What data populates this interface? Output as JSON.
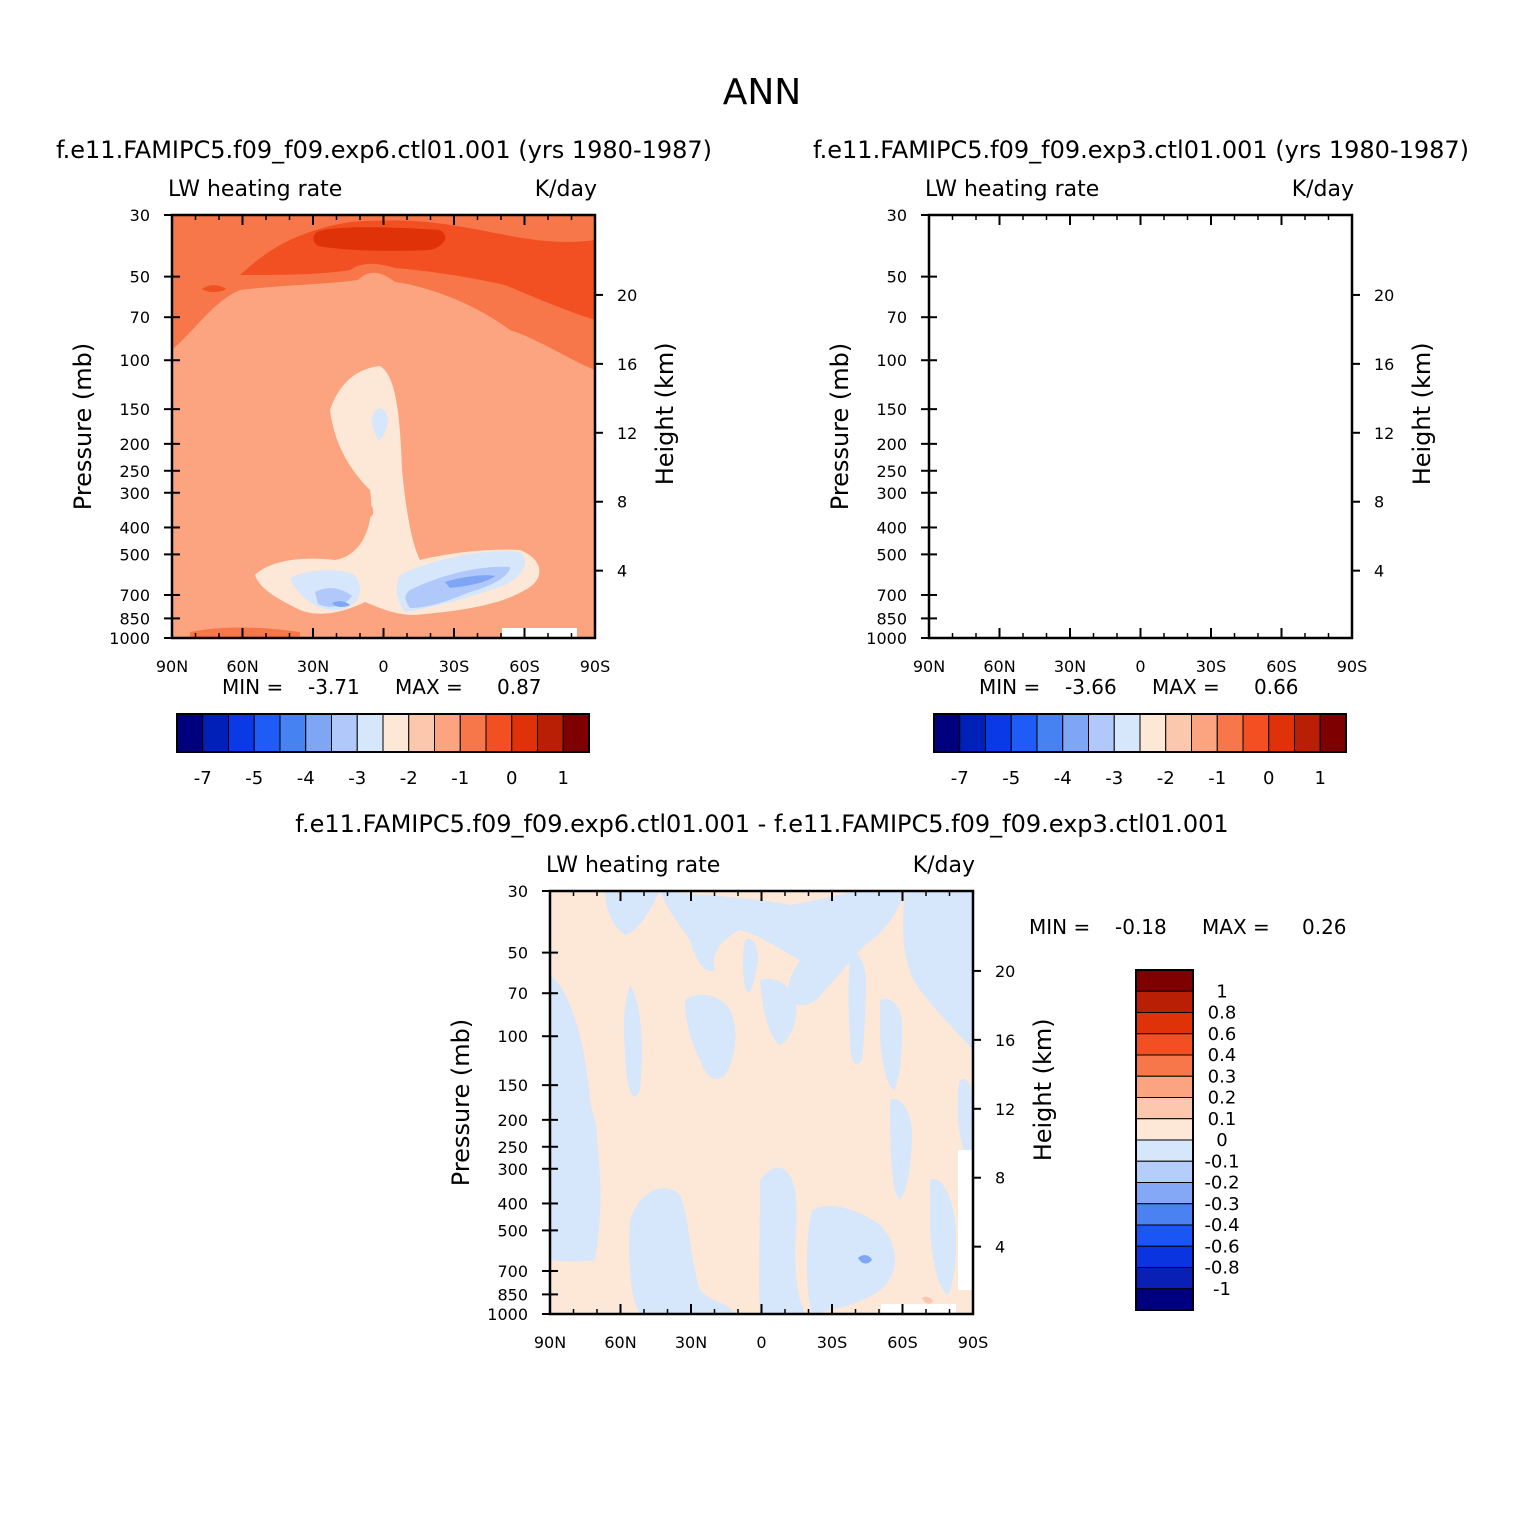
{
  "page_title": "ANN",
  "chart_data": [
    {
      "type": "heatmap",
      "title": "f.e11.FAMIPC5.f09_f09.exp6.ctl01.001 (yrs 1980-1987)",
      "left_label": "LW heating rate",
      "right_label": "K/day",
      "ylabel": "Pressure (mb)",
      "ylabel_right": "Height (km)",
      "x_ticks": [
        "90N",
        "60N",
        "30N",
        "0",
        "30S",
        "60S",
        "90S"
      ],
      "y_ticks": [
        "30",
        "50",
        "70",
        "100",
        "150",
        "200",
        "250",
        "300",
        "400",
        "500",
        "700",
        "850",
        "1000"
      ],
      "height_ticks": [
        "20",
        "16",
        "12",
        "8",
        "4"
      ],
      "min_label": "MIN =",
      "min_value": "-3.71",
      "max_label": "MAX =",
      "max_value": "0.87",
      "colorbar_labels": [
        "-7",
        "-5",
        "-4",
        "-3",
        "-2",
        "-1",
        "0",
        "1"
      ]
    },
    {
      "type": "heatmap",
      "title": "f.e11.FAMIPC5.f09_f09.exp3.ctl01.001 (yrs 1980-1987)",
      "left_label": "LW heating rate",
      "right_label": "K/day",
      "ylabel": "Pressure (mb)",
      "ylabel_right": "Height (km)",
      "x_ticks": [
        "90N",
        "60N",
        "30N",
        "0",
        "30S",
        "60S",
        "90S"
      ],
      "y_ticks": [
        "30",
        "50",
        "70",
        "100",
        "150",
        "200",
        "250",
        "300",
        "400",
        "500",
        "700",
        "850",
        "1000"
      ],
      "height_ticks": [
        "20",
        "16",
        "12",
        "8",
        "4"
      ],
      "min_label": "MIN =",
      "min_value": "-3.66",
      "max_label": "MAX =",
      "max_value": "0.66",
      "colorbar_labels": [
        "-7",
        "-5",
        "-4",
        "-3",
        "-2",
        "-1",
        "0",
        "1"
      ]
    },
    {
      "type": "heatmap",
      "title": "f.e11.FAMIPC5.f09_f09.exp6.ctl01.001 - f.e11.FAMIPC5.f09_f09.exp3.ctl01.001",
      "left_label": "LW heating rate",
      "right_label": "K/day",
      "ylabel": "Pressure (mb)",
      "ylabel_right": "Height (km)",
      "x_ticks": [
        "90N",
        "60N",
        "30N",
        "0",
        "30S",
        "60S",
        "90S"
      ],
      "y_ticks": [
        "30",
        "50",
        "70",
        "100",
        "150",
        "200",
        "250",
        "300",
        "400",
        "500",
        "700",
        "850",
        "1000"
      ],
      "height_ticks": [
        "20",
        "16",
        "12",
        "8",
        "4"
      ],
      "min_label": "MIN =",
      "min_value": "-0.18",
      "max_label": "MAX =",
      "max_value": "0.26",
      "colorbar_labels": [
        "1",
        "0.8",
        "0.6",
        "0.4",
        "0.3",
        "0.2",
        "0.1",
        "0",
        "-0.1",
        "-0.2",
        "-0.3",
        "-0.4",
        "-0.6",
        "-0.8",
        "-1"
      ]
    }
  ],
  "colors": {
    "palette": [
      "#00007f",
      "#0020b8",
      "#0a3ae6",
      "#1e5cf5",
      "#4682f2",
      "#7ea6f5",
      "#b1c9fa",
      "#d6e6fb",
      "#fde8d8",
      "#fcc8ad",
      "#fba47f",
      "#f7774a",
      "#f24f22",
      "#df3208",
      "#b81f05",
      "#7f0000"
    ],
    "diff_palette": [
      "#00007f",
      "#0a20b4",
      "#0a34e0",
      "#1a56f5",
      "#4a82f2",
      "#84a8f6",
      "#b4cdfb",
      "#d6e6fb",
      "#fde8d8",
      "#fcc8ad",
      "#fba47f",
      "#f7774a",
      "#f24f22",
      "#df3208",
      "#b81f05",
      "#7f0000"
    ]
  }
}
